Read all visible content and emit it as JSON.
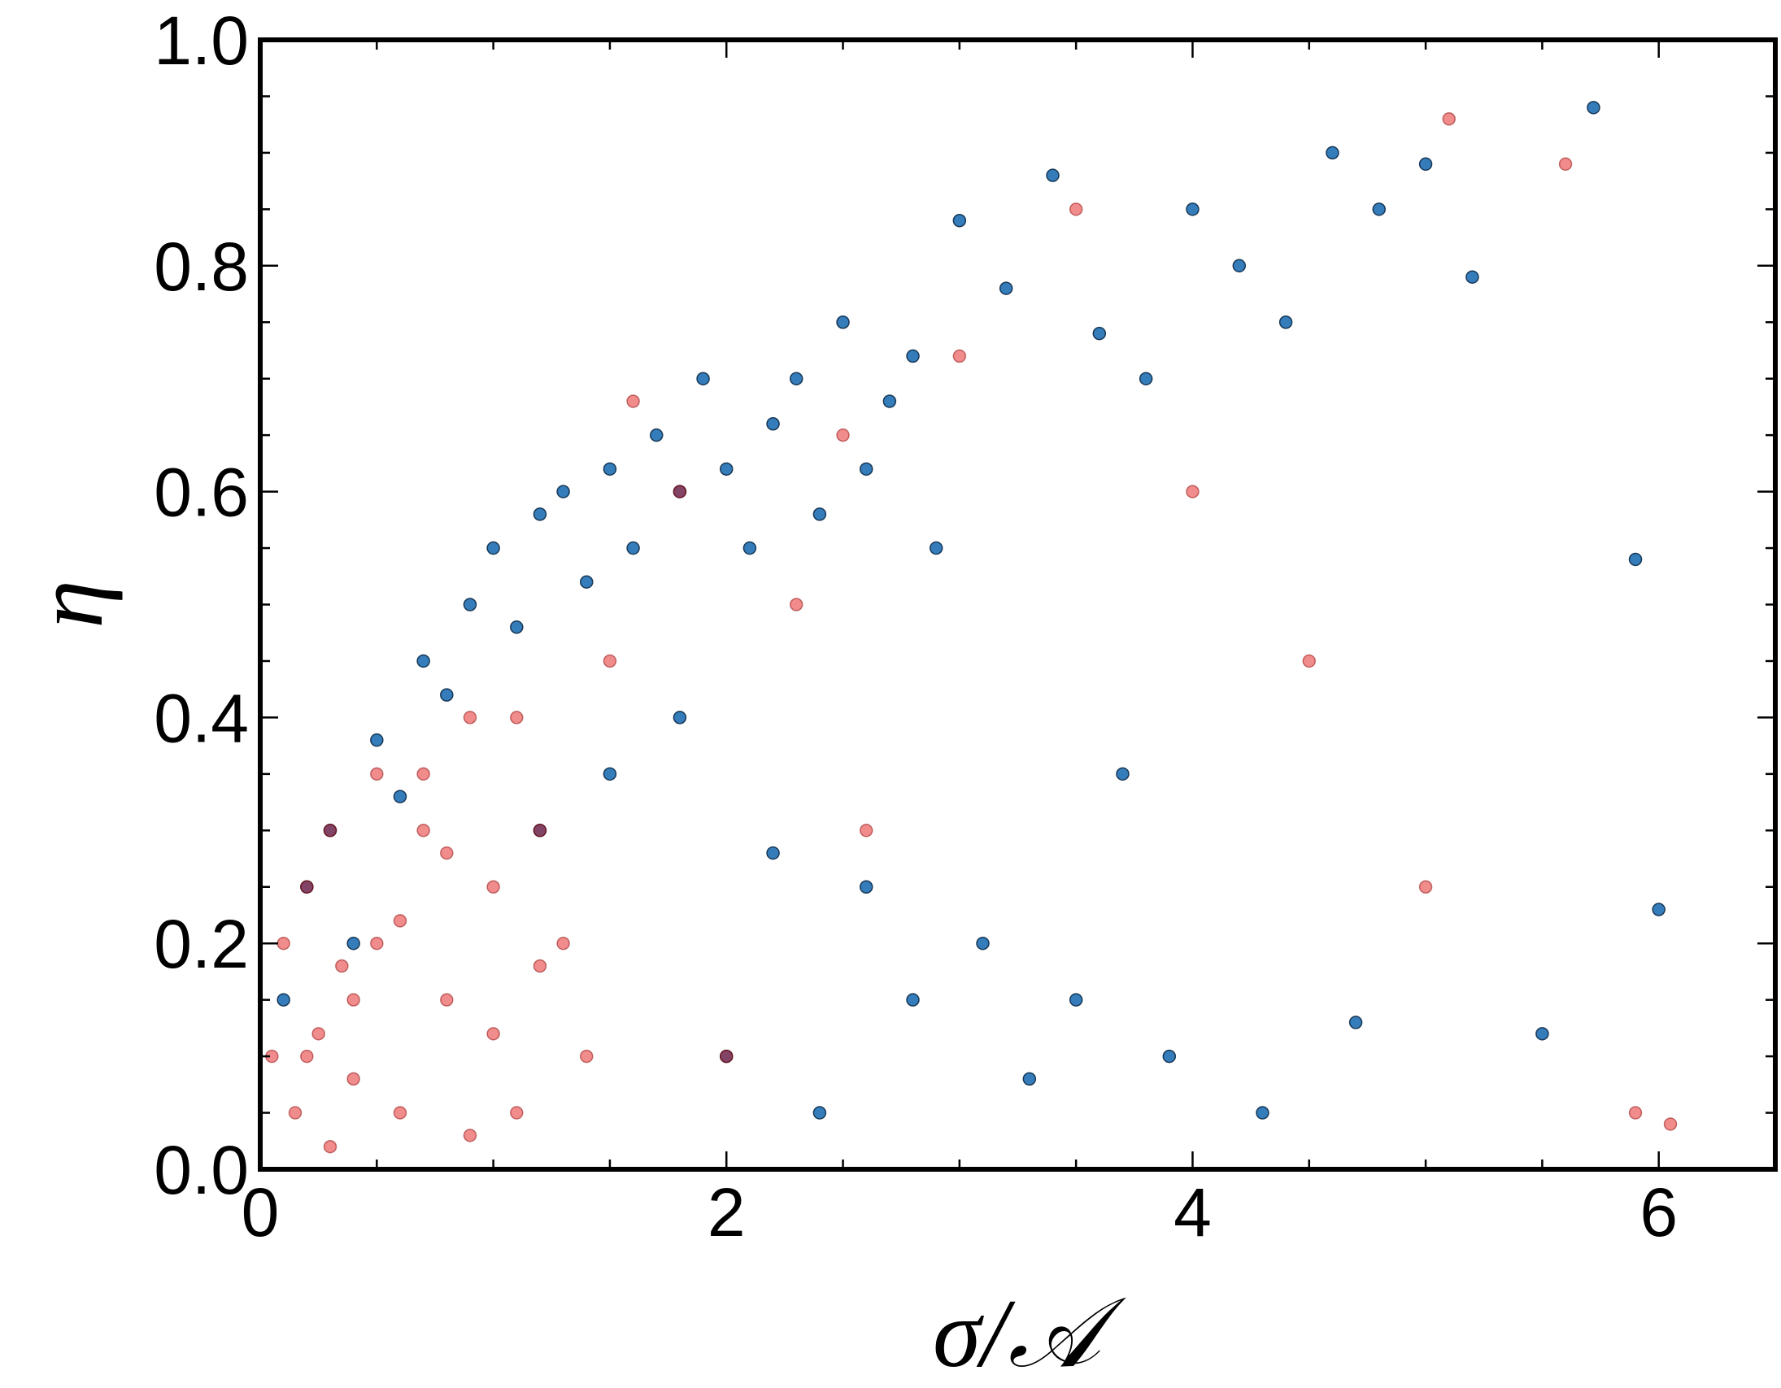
{
  "chart_data": {
    "type": "scatter",
    "xlabel": "σ/𝒜",
    "ylabel": "η",
    "xlim": [
      0,
      6.5
    ],
    "ylim": [
      0,
      1
    ],
    "xticks": [
      0,
      2,
      4,
      6
    ],
    "yticks": [
      {
        "value": 0,
        "label": "0.0"
      },
      0.2,
      0.4,
      0.6,
      0.8,
      {
        "value": 1,
        "label": "1.0"
      }
    ],
    "xticks_minor": [
      0.5,
      1,
      1.5,
      2.5,
      3,
      3.5,
      4.5,
      5,
      5.5,
      6.5
    ],
    "yticks_minor": [
      0.05,
      0.1,
      0.15,
      0.25,
      0.3,
      0.35,
      0.45,
      0.5,
      0.55,
      0.65,
      0.7,
      0.75,
      0.85,
      0.9,
      0.95
    ],
    "grid": false,
    "series": [
      {
        "color": "#1f6fb2",
        "x": [
          0.1,
          0.2,
          0.3,
          0.4,
          0.5,
          0.6,
          0.7,
          0.8,
          0.9,
          1.0,
          1.1,
          1.2,
          1.3,
          1.4,
          1.5,
          1.6,
          1.7,
          1.8,
          1.9,
          2.0,
          2.1,
          2.2,
          2.3,
          2.4,
          2.5,
          2.6,
          2.7,
          2.8,
          2.9,
          3.0,
          3.2,
          3.4,
          3.6,
          3.8,
          4.0,
          4.2,
          4.4,
          4.6,
          4.8,
          5.0,
          5.2,
          5.5,
          5.72,
          5.9,
          6.0,
          1.2,
          1.5,
          1.8,
          2.2,
          2.6,
          3.1,
          3.5,
          3.9,
          4.3,
          4.7,
          2.0,
          2.4,
          2.8,
          3.3,
          3.7
        ],
        "values": [
          0.15,
          0.25,
          0.3,
          0.2,
          0.38,
          0.33,
          0.45,
          0.42,
          0.5,
          0.55,
          0.48,
          0.58,
          0.6,
          0.52,
          0.62,
          0.55,
          0.65,
          0.6,
          0.7,
          0.62,
          0.55,
          0.66,
          0.7,
          0.58,
          0.75,
          0.62,
          0.68,
          0.72,
          0.55,
          0.84,
          0.78,
          0.88,
          0.74,
          0.7,
          0.85,
          0.8,
          0.75,
          0.9,
          0.85,
          0.89,
          0.79,
          0.12,
          0.94,
          0.54,
          0.23,
          0.3,
          0.35,
          0.4,
          0.28,
          0.25,
          0.2,
          0.15,
          0.1,
          0.05,
          0.13,
          0.1,
          0.05,
          0.15,
          0.08,
          0.35
        ]
      },
      {
        "color": "#e00000",
        "x": [
          0.05,
          0.1,
          0.15,
          0.2,
          0.25,
          0.3,
          0.35,
          0.4,
          0.5,
          0.6,
          0.7,
          0.8,
          0.9,
          1.0,
          1.1,
          1.2,
          1.3,
          1.4,
          0.2,
          0.4,
          0.6,
          0.8,
          1.0,
          1.2,
          0.3,
          0.5,
          0.7,
          0.9,
          1.1,
          1.5,
          1.8,
          2.0,
          2.3,
          2.6,
          3.0,
          3.5,
          4.0,
          4.5,
          5.0,
          5.1,
          5.6,
          5.9,
          6.05,
          2.5,
          1.6
        ],
        "values": [
          0.1,
          0.2,
          0.05,
          0.25,
          0.12,
          0.3,
          0.18,
          0.08,
          0.35,
          0.22,
          0.3,
          0.15,
          0.4,
          0.25,
          0.05,
          0.3,
          0.2,
          0.1,
          0.1,
          0.15,
          0.05,
          0.28,
          0.12,
          0.18,
          0.02,
          0.2,
          0.35,
          0.03,
          0.4,
          0.45,
          0.6,
          0.1,
          0.5,
          0.3,
          0.72,
          0.85,
          0.6,
          0.45,
          0.25,
          0.93,
          0.89,
          0.05,
          0.04,
          0.65,
          0.68
        ]
      }
    ]
  }
}
